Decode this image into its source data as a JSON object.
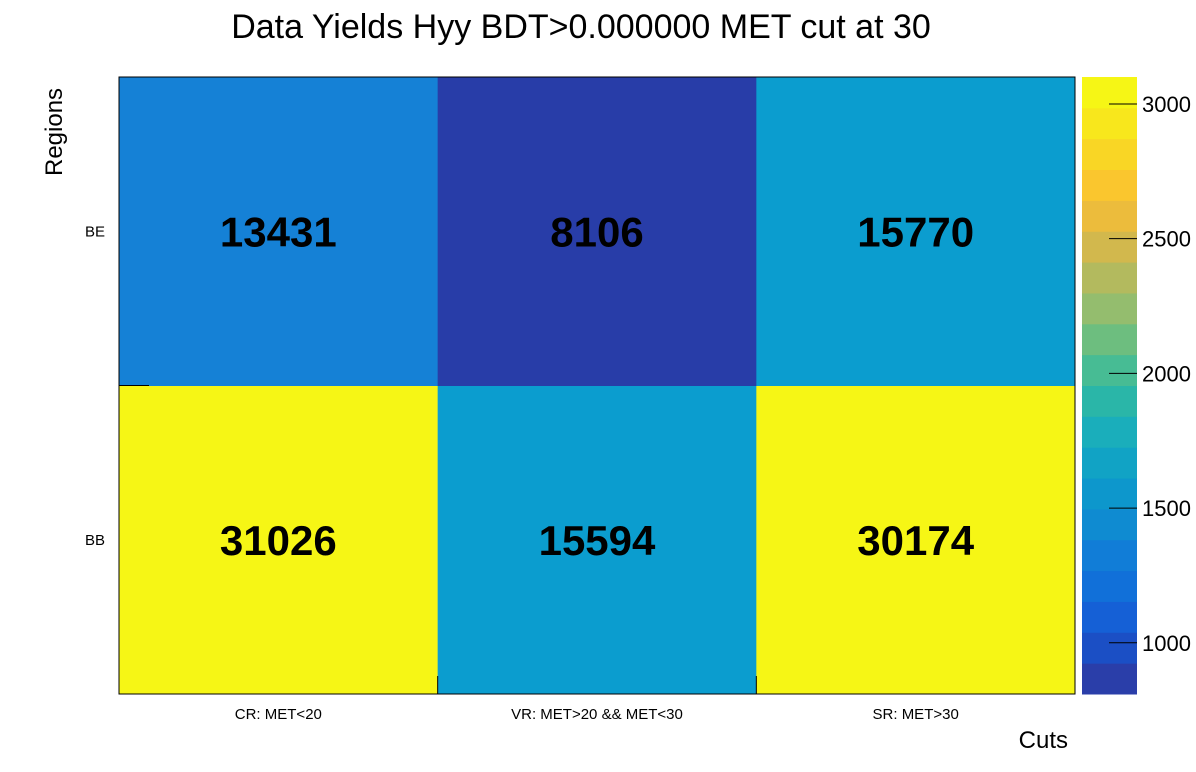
{
  "chart_data": {
    "type": "heatmap",
    "title": "Data Yields Hyy BDT>0.000000 MET cut at 30",
    "xlabel": "Cuts",
    "ylabel": "Regions",
    "x_categories": [
      "CR: MET<20",
      "VR: MET>20 && MET<30",
      "SR: MET>30"
    ],
    "y_categories": [
      "BB",
      "BE"
    ],
    "values": [
      [
        31026,
        15594,
        30174
      ],
      [
        13431,
        8106,
        15770
      ]
    ],
    "colorbar": {
      "range": [
        810,
        3100
      ],
      "ticks": [
        1000,
        1500,
        2000,
        2500,
        3000
      ],
      "colors": [
        "#2a3ea9",
        "#1b4fc5",
        "#1560d6",
        "#1170d9",
        "#117dd7",
        "#0f8bd1",
        "#0d97cc",
        "#11a3c5",
        "#1aaebb",
        "#2ab6a8",
        "#47bc94",
        "#6dbe7f",
        "#94bd6e",
        "#b3ba5e",
        "#d2b84d",
        "#ecbc3c",
        "#fac62e",
        "#f9d625",
        "#f8e71c",
        "#f6f615"
      ]
    },
    "cell_colors": [
      [
        "#f6f615",
        "#0b9dcf",
        "#f6f615"
      ],
      [
        "#1581d6",
        "#283da8",
        "#0b9dcf"
      ]
    ]
  }
}
